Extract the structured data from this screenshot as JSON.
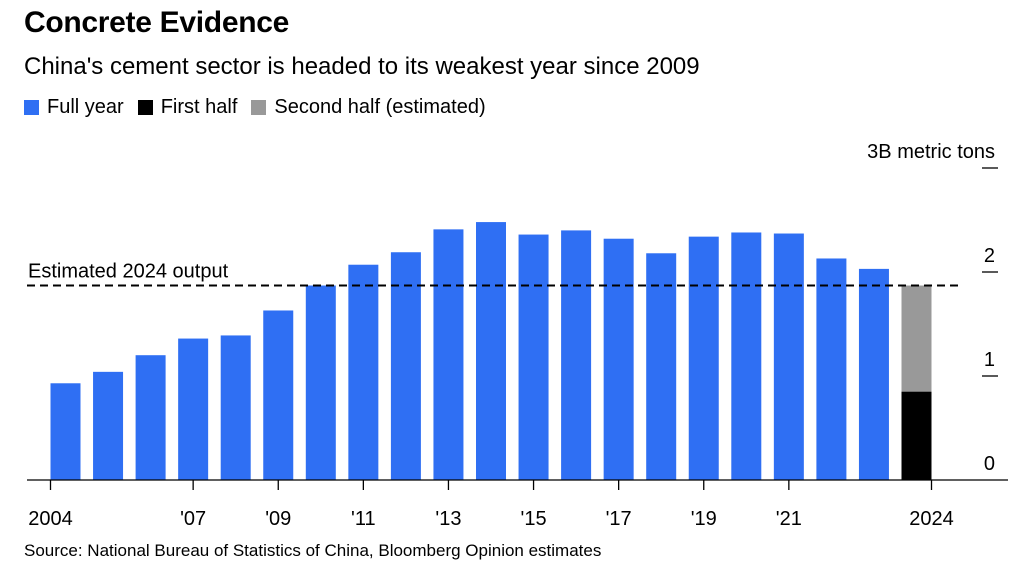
{
  "header": {
    "title": "Concrete Evidence",
    "subtitle": "China's cement sector is headed to its weakest year since 2009"
  },
  "legend": [
    {
      "label": "Full year",
      "color": "#2f6ff3"
    },
    {
      "label": "First half",
      "color": "#000000"
    },
    {
      "label": "Second half (estimated)",
      "color": "#999999"
    }
  ],
  "footer": {
    "source": "Source: National Bureau of Statistics of China, Bloomberg Opinion estimates"
  },
  "chart_data": {
    "type": "bar",
    "title": "Concrete Evidence",
    "subtitle": "China's cement sector is headed to its weakest year since 2009",
    "ylabel": "3B metric tons",
    "xlabel": "",
    "ylim": [
      0,
      3
    ],
    "yticks": [
      0,
      1,
      2,
      3
    ],
    "ytick_labels": [
      "0",
      "1",
      "2",
      "3B metric tons"
    ],
    "y_axis_side": "right",
    "grid": false,
    "legend_position": "top-left",
    "categories": [
      "2004",
      "2005",
      "2006",
      "2007",
      "2008",
      "2009",
      "2010",
      "2011",
      "2012",
      "2013",
      "2014",
      "2015",
      "2016",
      "2017",
      "2018",
      "2019",
      "2020",
      "2021",
      "2022",
      "2023",
      "2024"
    ],
    "xtick_labels": [
      {
        "category": "2004",
        "label": "2004"
      },
      {
        "category": "2007",
        "label": "'07"
      },
      {
        "category": "2009",
        "label": "'09"
      },
      {
        "category": "2011",
        "label": "'11"
      },
      {
        "category": "2013",
        "label": "'13"
      },
      {
        "category": "2015",
        "label": "'15"
      },
      {
        "category": "2017",
        "label": "'17"
      },
      {
        "category": "2019",
        "label": "'19"
      },
      {
        "category": "2021",
        "label": "'21"
      },
      {
        "category": "2024",
        "label": "2024"
      }
    ],
    "series": [
      {
        "name": "Full year",
        "color": "#2f6ff3",
        "values": [
          0.93,
          1.04,
          1.2,
          1.36,
          1.39,
          1.63,
          1.87,
          2.07,
          2.19,
          2.41,
          2.48,
          2.36,
          2.4,
          2.32,
          2.18,
          2.34,
          2.38,
          2.37,
          2.13,
          2.03,
          null
        ]
      },
      {
        "name": "First half",
        "color": "#000000",
        "values": [
          null,
          null,
          null,
          null,
          null,
          null,
          null,
          null,
          null,
          null,
          null,
          null,
          null,
          null,
          null,
          null,
          null,
          null,
          null,
          null,
          0.85
        ]
      },
      {
        "name": "Second half (estimated)",
        "color": "#999999",
        "values": [
          null,
          null,
          null,
          null,
          null,
          null,
          null,
          null,
          null,
          null,
          null,
          null,
          null,
          null,
          null,
          null,
          null,
          null,
          null,
          null,
          1.02
        ]
      }
    ],
    "annotations": [
      {
        "type": "hline",
        "value": 1.87,
        "label": "Estimated 2024 output",
        "style": "dashed"
      }
    ]
  }
}
